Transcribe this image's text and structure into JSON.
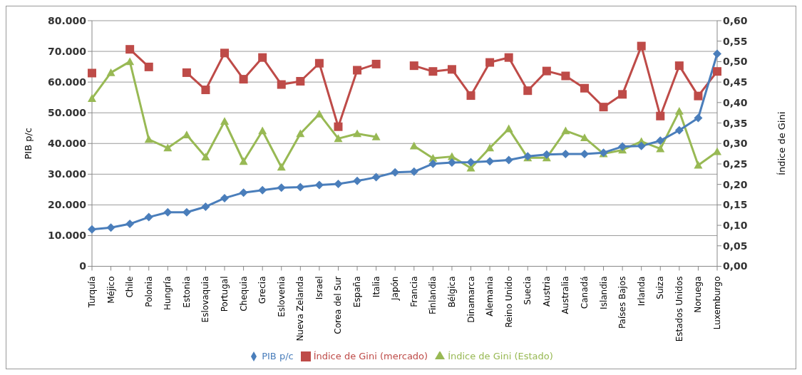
{
  "chart_data": {
    "type": "line",
    "ylabel": "PIB p/c",
    "y2label": "Índice de Gini",
    "categories": [
      "Turquía",
      "Méjico",
      "Chile",
      "Polonia",
      "Hungría",
      "Estonia",
      "Eslovaquia",
      "Portugal",
      "Chequia",
      "Grecia",
      "Eslovenia",
      "Nueva Zelanda",
      "Israel",
      "Corea del Sur",
      "España",
      "Italia",
      "Japón",
      "Francia",
      "Finlandia",
      "Bélgica",
      "Dinamarca",
      "Alemania",
      "Reino Unido",
      "Suecia",
      "Austria",
      "Australia",
      "Canadá",
      "Islandia",
      "Países Bajos",
      "Irlanda",
      "Suiza",
      "Estados Unidos",
      "Noruega",
      "Luxemburgo"
    ],
    "series": [
      {
        "name": "PIB p/c",
        "color": "#4a7ebb",
        "marker": "diamond",
        "values": [
          12000,
          12600,
          13800,
          16000,
          17600,
          17600,
          19400,
          22200,
          24000,
          24800,
          25600,
          25800,
          26500,
          26800,
          27800,
          29000,
          30600,
          30800,
          33400,
          33800,
          33900,
          34200,
          34600,
          35800,
          36400,
          36600,
          36600,
          37000,
          39000,
          39200,
          40900,
          44300,
          48300,
          69200
        ]
      },
      {
        "name": "Índice de Gini (mercado)",
        "color": "#be4b48",
        "marker": "square",
        "axis": "y2",
        "values": [
          0.472,
          null,
          0.53,
          0.487,
          null,
          0.473,
          0.431,
          0.521,
          0.457,
          0.51,
          0.444,
          0.452,
          0.496,
          0.341,
          0.479,
          0.494,
          null,
          0.49,
          0.476,
          0.481,
          0.417,
          0.498,
          0.51,
          0.429,
          0.477,
          0.465,
          0.435,
          0.389,
          0.42,
          0.538,
          0.367,
          0.49,
          0.416,
          0.476
        ]
      },
      {
        "name": "Índice de Gini (Estado)",
        "color": "#98b954",
        "marker": "triangle",
        "axis": "y2",
        "values": [
          0.41,
          0.473,
          0.5,
          0.31,
          0.289,
          0.321,
          0.267,
          0.354,
          0.256,
          0.331,
          0.242,
          0.324,
          0.372,
          0.312,
          0.324,
          0.316,
          null,
          0.294,
          0.264,
          0.268,
          0.24,
          0.289,
          0.336,
          0.265,
          0.265,
          0.331,
          0.314,
          0.275,
          0.284,
          0.305,
          0.287,
          0.379,
          0.247,
          0.28
        ]
      }
    ],
    "ylim": [
      0,
      80000
    ],
    "yticks": [
      {
        "value": 0,
        "label": "0"
      },
      {
        "value": 10000,
        "label": "10.000"
      },
      {
        "value": 20000,
        "label": "20.000"
      },
      {
        "value": 30000,
        "label": "30.000"
      },
      {
        "value": 40000,
        "label": "40.000"
      },
      {
        "value": 50000,
        "label": "50.000"
      },
      {
        "value": 60000,
        "label": "60.000"
      },
      {
        "value": 70000,
        "label": "70.000"
      },
      {
        "value": 80000,
        "label": "80.000"
      }
    ],
    "y2lim": [
      0,
      0.6
    ],
    "y2ticks": [
      {
        "value": 0,
        "label": "0,00"
      },
      {
        "value": 0.05,
        "label": "0,05"
      },
      {
        "value": 0.1,
        "label": "0,10"
      },
      {
        "value": 0.15,
        "label": "0,15"
      },
      {
        "value": 0.2,
        "label": "0,20"
      },
      {
        "value": 0.25,
        "label": "0,25"
      },
      {
        "value": 0.3,
        "label": "0,30"
      },
      {
        "value": 0.35,
        "label": "0,35"
      },
      {
        "value": 0.4,
        "label": "0,40"
      },
      {
        "value": 0.45,
        "label": "0,45"
      },
      {
        "value": 0.5,
        "label": "0,50"
      },
      {
        "value": 0.55,
        "label": "0,55"
      },
      {
        "value": 0.6,
        "label": "0,60"
      }
    ],
    "grid": "y",
    "legend": "bottom",
    "line_style": "solid"
  }
}
